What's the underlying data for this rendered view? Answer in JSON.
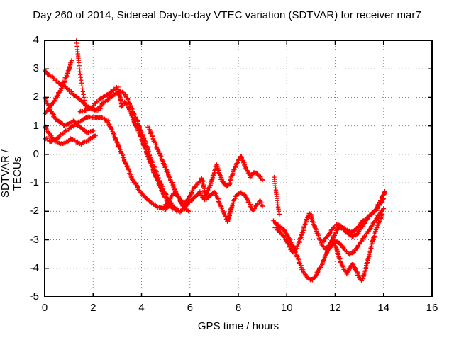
{
  "title": "Day 260 of 2014, Sidereal Day-to-day VTEC variation (SDTVAR) for receiver mar7",
  "colors": {
    "series": "#ff0000",
    "axis": "#000000",
    "grid": "#858585",
    "background": "#ffffff"
  },
  "chart_data": {
    "type": "scatter",
    "marker": "plus",
    "title": "Day 260 of 2014, Sidereal Day-to-day VTEC variation (SDTVAR) for receiver mar7",
    "xlabel": "GPS time / hours",
    "ylabel": "SDTVAR / TECUs",
    "xlim": [
      0,
      16
    ],
    "ylim": [
      -5,
      4
    ],
    "xticks": [
      0,
      2,
      4,
      6,
      8,
      10,
      12,
      14,
      16
    ],
    "yticks": [
      -5,
      -4,
      -3,
      -2,
      -1,
      0,
      1,
      2,
      3,
      4
    ],
    "grid": true,
    "legend": "none",
    "series": [
      {
        "id": "trace-01",
        "style": "dense",
        "points": [
          [
            0,
            2.95
          ],
          [
            0.15,
            2.8
          ],
          [
            0.35,
            2.68
          ],
          [
            0.6,
            2.5
          ],
          [
            0.85,
            2.35
          ],
          [
            1.1,
            2.18
          ],
          [
            1.35,
            2.0
          ],
          [
            1.6,
            1.8
          ],
          [
            1.85,
            1.63
          ],
          [
            2.1,
            1.55
          ],
          [
            2.3,
            1.6
          ]
        ]
      },
      {
        "id": "trace-02",
        "style": "dense",
        "points": [
          [
            0,
            1.42
          ],
          [
            0.2,
            1.62
          ],
          [
            0.4,
            1.88
          ],
          [
            0.6,
            2.18
          ],
          [
            0.78,
            2.5
          ],
          [
            0.95,
            2.85
          ],
          [
            1.05,
            3.1
          ],
          [
            1.12,
            3.3
          ]
        ]
      },
      {
        "id": "trace-03",
        "style": "sparse",
        "points": [
          [
            1.3,
            4.08
          ],
          [
            1.32,
            3.9
          ],
          [
            1.35,
            3.68
          ],
          [
            1.38,
            3.45
          ],
          [
            1.41,
            3.22
          ],
          [
            1.44,
            3.0
          ],
          [
            1.47,
            2.8
          ],
          [
            1.5,
            2.6
          ],
          [
            1.54,
            2.4
          ],
          [
            1.58,
            2.2
          ],
          [
            1.62,
            2.0
          ],
          [
            1.66,
            1.8
          ],
          [
            1.7,
            1.62
          ]
        ]
      },
      {
        "id": "trace-04",
        "style": "dense",
        "points": [
          [
            0,
            1.0
          ],
          [
            0.15,
            0.78
          ],
          [
            0.3,
            0.58
          ],
          [
            0.5,
            0.45
          ],
          [
            0.7,
            0.38
          ],
          [
            0.9,
            0.44
          ],
          [
            1.1,
            0.55
          ],
          [
            1.3,
            0.45
          ],
          [
            1.5,
            0.38
          ],
          [
            1.7,
            0.45
          ],
          [
            1.9,
            0.55
          ],
          [
            2.1,
            0.65
          ]
        ]
      },
      {
        "id": "trace-05",
        "style": "dense",
        "points": [
          [
            0,
            2.0
          ],
          [
            0.12,
            1.75
          ],
          [
            0.25,
            1.52
          ],
          [
            0.4,
            1.32
          ],
          [
            0.6,
            1.12
          ],
          [
            0.8,
            1.02
          ],
          [
            1.0,
            1.08
          ],
          [
            1.2,
            1.18
          ],
          [
            1.4,
            1.02
          ],
          [
            1.6,
            0.86
          ],
          [
            1.8,
            0.76
          ],
          [
            2.0,
            0.82
          ]
        ]
      },
      {
        "id": "trace-06",
        "style": "dense",
        "points": [
          [
            0,
            0.58
          ],
          [
            0.25,
            0.44
          ],
          [
            0.5,
            0.55
          ],
          [
            0.75,
            0.72
          ],
          [
            1.0,
            0.9
          ],
          [
            1.25,
            1.05
          ],
          [
            1.5,
            1.18
          ],
          [
            1.8,
            1.32
          ],
          [
            2.1,
            1.3
          ],
          [
            2.4,
            1.27
          ],
          [
            2.6,
            1.15
          ],
          [
            2.8,
            0.8
          ],
          [
            2.95,
            0.5
          ],
          [
            3.1,
            0.2
          ],
          [
            3.25,
            -0.1
          ],
          [
            3.45,
            -0.52
          ],
          [
            3.65,
            -0.9
          ],
          [
            3.9,
            -1.25
          ],
          [
            4.15,
            -1.5
          ],
          [
            4.45,
            -1.72
          ],
          [
            4.75,
            -1.88
          ],
          [
            5.0,
            -1.95
          ]
        ]
      },
      {
        "id": "trace-07",
        "style": "dense",
        "points": [
          [
            1.45,
            1.5
          ],
          [
            1.7,
            1.55
          ],
          [
            2.0,
            1.7
          ],
          [
            2.3,
            1.95
          ],
          [
            2.6,
            2.12
          ],
          [
            2.85,
            2.26
          ],
          [
            3.02,
            2.35
          ],
          [
            3.1,
            2.05
          ],
          [
            3.18,
            1.68
          ],
          [
            3.3,
            1.82
          ],
          [
            3.42,
            1.72
          ],
          [
            3.55,
            1.45
          ],
          [
            3.7,
            1.15
          ],
          [
            3.85,
            0.85
          ],
          [
            4.0,
            0.55
          ],
          [
            4.15,
            0.2
          ],
          [
            4.3,
            -0.15
          ],
          [
            4.5,
            -0.6
          ],
          [
            4.7,
            -1.0
          ],
          [
            4.9,
            -1.4
          ],
          [
            5.1,
            -1.7
          ],
          [
            5.3,
            -1.9
          ]
        ]
      },
      {
        "id": "trace-08",
        "style": "dense",
        "points": [
          [
            2.2,
            1.6
          ],
          [
            2.5,
            1.85
          ],
          [
            2.8,
            2.05
          ],
          [
            3.0,
            2.18
          ],
          [
            3.15,
            2.22
          ],
          [
            3.3,
            2.1
          ],
          [
            3.45,
            1.9
          ],
          [
            3.6,
            1.6
          ],
          [
            3.75,
            1.3
          ],
          [
            3.9,
            1.0
          ],
          [
            4.05,
            0.65
          ],
          [
            4.2,
            0.3
          ],
          [
            4.35,
            -0.05
          ],
          [
            4.5,
            -0.4
          ],
          [
            4.68,
            -0.8
          ],
          [
            4.85,
            -1.15
          ],
          [
            5.05,
            -1.5
          ],
          [
            5.25,
            -1.8
          ],
          [
            5.45,
            -2.0
          ]
        ]
      },
      {
        "id": "trace-09",
        "style": "dense",
        "points": [
          [
            4.28,
            0.95
          ],
          [
            4.45,
            0.62
          ],
          [
            4.62,
            0.28
          ],
          [
            4.8,
            -0.1
          ],
          [
            5.0,
            -0.5
          ],
          [
            5.2,
            -0.9
          ],
          [
            5.4,
            -1.3
          ],
          [
            5.6,
            -1.65
          ],
          [
            5.8,
            -1.9
          ],
          [
            5.95,
            -2.0
          ]
        ]
      },
      {
        "id": "trace-10",
        "style": "dense",
        "points": [
          [
            4.95,
            -1.85
          ],
          [
            5.15,
            -1.6
          ],
          [
            5.35,
            -1.35
          ],
          [
            5.55,
            -1.5
          ],
          [
            5.75,
            -1.8
          ],
          [
            5.95,
            -1.55
          ],
          [
            6.15,
            -1.2
          ],
          [
            6.35,
            -1.0
          ],
          [
            6.5,
            -0.85
          ],
          [
            6.65,
            -1.45
          ],
          [
            6.85,
            -1.05
          ],
          [
            7.1,
            -0.35
          ],
          [
            7.3,
            -0.88
          ],
          [
            7.5,
            -1.1
          ],
          [
            7.63,
            -1.05
          ],
          [
            7.78,
            -0.6
          ],
          [
            7.95,
            -0.3
          ],
          [
            8.1,
            -0.05
          ],
          [
            8.3,
            -0.45
          ],
          [
            8.5,
            -0.8
          ],
          [
            8.65,
            -0.62
          ],
          [
            8.85,
            -0.72
          ],
          [
            9.0,
            -0.9
          ]
        ]
      },
      {
        "id": "trace-11",
        "style": "dense",
        "points": [
          [
            5.0,
            -1.92
          ],
          [
            5.2,
            -1.72
          ],
          [
            5.4,
            -1.88
          ],
          [
            5.6,
            -2.02
          ],
          [
            5.8,
            -1.85
          ],
          [
            6.0,
            -1.68
          ],
          [
            6.2,
            -1.5
          ],
          [
            6.4,
            -1.32
          ],
          [
            6.6,
            -1.6
          ],
          [
            6.8,
            -1.48
          ],
          [
            7.0,
            -1.32
          ],
          [
            7.2,
            -1.65
          ],
          [
            7.4,
            -2.05
          ],
          [
            7.55,
            -2.38
          ],
          [
            7.7,
            -1.9
          ],
          [
            7.88,
            -1.48
          ],
          [
            8.05,
            -1.35
          ],
          [
            8.25,
            -1.4
          ],
          [
            8.45,
            -1.72
          ],
          [
            8.6,
            -2.0
          ],
          [
            8.75,
            -1.78
          ],
          [
            8.9,
            -1.62
          ],
          [
            9.0,
            -1.82
          ]
        ]
      },
      {
        "id": "trace-12",
        "style": "sparse",
        "points": [
          [
            9.48,
            -0.8
          ],
          [
            9.5,
            -0.95
          ],
          [
            9.52,
            -1.1
          ],
          [
            9.55,
            -1.25
          ],
          [
            9.57,
            -1.4
          ],
          [
            9.6,
            -1.55
          ],
          [
            9.62,
            -1.7
          ],
          [
            9.64,
            -1.85
          ],
          [
            9.67,
            -2.0
          ],
          [
            9.7,
            -2.1
          ]
        ]
      },
      {
        "id": "trace-13",
        "style": "dense",
        "points": [
          [
            9.45,
            -2.35
          ],
          [
            9.6,
            -2.45
          ],
          [
            9.75,
            -2.55
          ],
          [
            9.9,
            -2.68
          ],
          [
            10.1,
            -2.95
          ],
          [
            10.3,
            -3.3
          ],
          [
            10.5,
            -3.75
          ],
          [
            10.7,
            -4.15
          ],
          [
            10.9,
            -4.38
          ],
          [
            11.05,
            -4.42
          ],
          [
            11.2,
            -4.25
          ],
          [
            11.4,
            -3.95
          ],
          [
            11.6,
            -3.55
          ],
          [
            11.8,
            -3.25
          ],
          [
            12.0,
            -3.05
          ],
          [
            12.2,
            -3.15
          ],
          [
            12.4,
            -3.35
          ],
          [
            12.6,
            -3.5
          ],
          [
            12.8,
            -3.4
          ],
          [
            13.0,
            -3.15
          ],
          [
            13.2,
            -2.9
          ],
          [
            13.4,
            -2.65
          ],
          [
            13.6,
            -2.4
          ],
          [
            13.8,
            -2.15
          ],
          [
            14.0,
            -1.9
          ]
        ]
      },
      {
        "id": "trace-14",
        "style": "dense",
        "points": [
          [
            9.5,
            -2.55
          ],
          [
            9.7,
            -2.7
          ],
          [
            9.9,
            -2.9
          ],
          [
            10.1,
            -3.2
          ],
          [
            10.25,
            -3.45
          ],
          [
            10.4,
            -3.3
          ],
          [
            10.55,
            -3.0
          ],
          [
            10.7,
            -2.6
          ],
          [
            10.85,
            -2.2
          ],
          [
            10.95,
            -2.05
          ],
          [
            11.1,
            -2.4
          ],
          [
            11.3,
            -2.85
          ],
          [
            11.5,
            -3.25
          ],
          [
            11.65,
            -3.35
          ],
          [
            11.8,
            -3.1
          ],
          [
            12.0,
            -2.8
          ],
          [
            12.15,
            -2.5
          ],
          [
            12.3,
            -2.6
          ],
          [
            12.5,
            -2.75
          ],
          [
            12.7,
            -2.9
          ],
          [
            12.9,
            -2.8
          ],
          [
            13.1,
            -2.55
          ],
          [
            13.3,
            -2.3
          ],
          [
            13.5,
            -2.1
          ],
          [
            13.7,
            -1.9
          ],
          [
            13.9,
            -1.6
          ],
          [
            14.05,
            -1.3
          ]
        ]
      },
      {
        "id": "trace-15",
        "style": "dense",
        "points": [
          [
            11.9,
            -2.95
          ],
          [
            12.05,
            -3.3
          ],
          [
            12.2,
            -3.7
          ],
          [
            12.35,
            -4.0
          ],
          [
            12.5,
            -4.2
          ],
          [
            12.6,
            -4.0
          ],
          [
            12.72,
            -3.85
          ],
          [
            12.85,
            -4.05
          ],
          [
            13.0,
            -4.3
          ],
          [
            13.1,
            -4.45
          ],
          [
            13.2,
            -4.2
          ],
          [
            13.35,
            -3.7
          ],
          [
            13.5,
            -3.2
          ],
          [
            13.65,
            -2.75
          ],
          [
            13.8,
            -2.4
          ],
          [
            13.95,
            -2.1
          ]
        ]
      },
      {
        "id": "trace-16",
        "style": "dense",
        "points": [
          [
            11.5,
            -3.05
          ],
          [
            11.7,
            -2.85
          ],
          [
            11.9,
            -2.6
          ],
          [
            12.1,
            -2.45
          ],
          [
            12.3,
            -2.55
          ],
          [
            12.5,
            -2.68
          ],
          [
            12.7,
            -2.75
          ],
          [
            12.9,
            -2.6
          ],
          [
            13.1,
            -2.4
          ],
          [
            13.3,
            -2.25
          ],
          [
            13.5,
            -2.1
          ],
          [
            13.7,
            -1.95
          ],
          [
            13.85,
            -1.75
          ],
          [
            14.0,
            -1.55
          ]
        ]
      }
    ]
  }
}
